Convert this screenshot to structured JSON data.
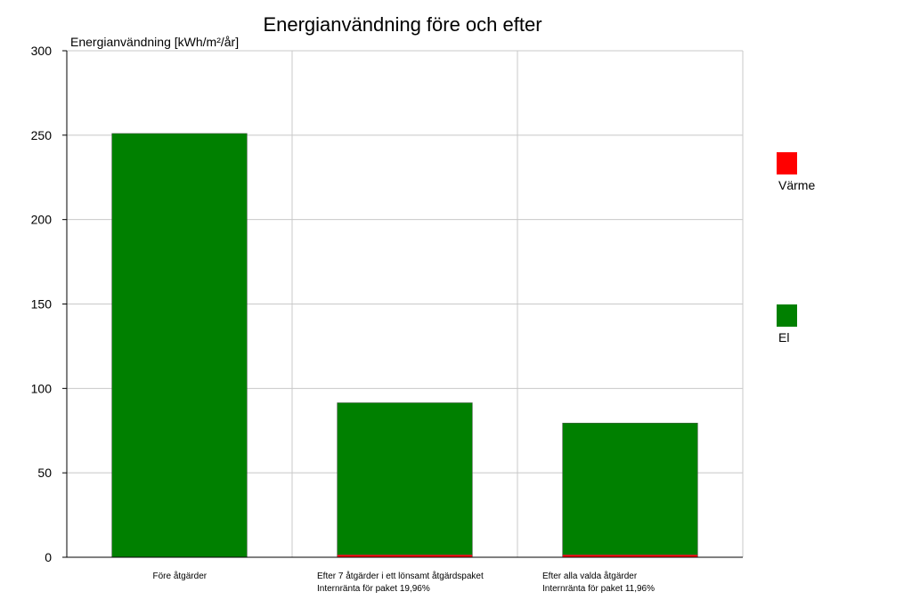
{
  "chart_data": {
    "type": "bar",
    "title": "Energianvändning före och efter",
    "ylabel": "Energianvändning [kWh/m²/år]",
    "xlabel": "",
    "ylim": [
      0,
      300
    ],
    "yticks": [
      0,
      50,
      100,
      150,
      200,
      250,
      300
    ],
    "grid": true,
    "legend_position": "right",
    "categories": [
      {
        "lines": [
          "Före åtgärder"
        ]
      },
      {
        "lines": [
          "Efter 7 åtgärder i ett lönsamt åtgärdspaket",
          "Internränta för paket 19,96%"
        ]
      },
      {
        "lines": [
          "Efter alla valda åtgärder",
          "Internränta för paket 11,96%"
        ]
      }
    ],
    "series": [
      {
        "name": "Värme",
        "color": "#ff0000",
        "values": [
          0,
          1.5,
          1.5
        ]
      },
      {
        "name": "El",
        "color": "#008000",
        "values": [
          251,
          90,
          78
        ]
      }
    ]
  }
}
